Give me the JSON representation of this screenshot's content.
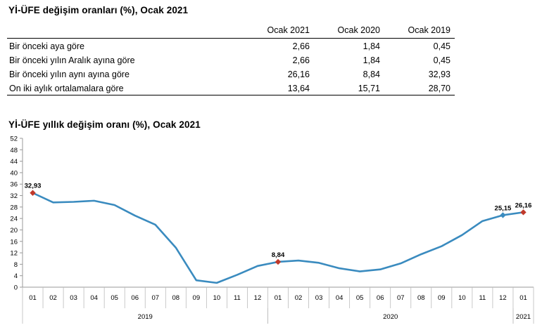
{
  "table": {
    "title": "Yİ-ÜFE değişim oranları (%), Ocak 2021",
    "columns": [
      "Ocak 2021",
      "Ocak 2020",
      "Ocak 2019"
    ],
    "rows": [
      {
        "label": "Bir önceki aya göre",
        "values": [
          "2,66",
          "1,84",
          "0,45"
        ]
      },
      {
        "label": "Bir önceki yılın Aralık ayına göre",
        "values": [
          "2,66",
          "1,84",
          "0,45"
        ]
      },
      {
        "label": "Bir önceki yılın aynı ayına göre",
        "values": [
          "26,16",
          "8,84",
          "32,93"
        ]
      },
      {
        "label": "On iki aylık ortalamalara göre",
        "values": [
          "13,64",
          "15,71",
          "28,70"
        ]
      }
    ]
  },
  "chart_data": {
    "type": "line",
    "title": "Yİ-ÜFE yıllık değişim oranı (%), Ocak 2021",
    "xlabel": "",
    "ylabel": "",
    "ylim": [
      0,
      52
    ],
    "yticks": [
      0,
      4,
      8,
      12,
      16,
      20,
      24,
      28,
      32,
      36,
      40,
      44,
      48,
      52
    ],
    "categories": [
      "01",
      "02",
      "03",
      "04",
      "05",
      "06",
      "07",
      "08",
      "09",
      "10",
      "11",
      "12",
      "01",
      "02",
      "03",
      "04",
      "05",
      "06",
      "07",
      "08",
      "09",
      "10",
      "11",
      "12",
      "01"
    ],
    "year_groups": [
      {
        "label": "2019",
        "count": 12
      },
      {
        "label": "2020",
        "count": 12
      },
      {
        "label": "2021",
        "count": 1
      }
    ],
    "series": [
      {
        "color": "#3a8bbf",
        "values": [
          32.93,
          29.6,
          29.8,
          30.2,
          28.7,
          25.0,
          21.8,
          13.8,
          2.4,
          1.5,
          4.3,
          7.4,
          8.84,
          9.3,
          8.5,
          6.6,
          5.5,
          6.2,
          8.3,
          11.5,
          14.3,
          18.2,
          23.1,
          25.15,
          26.16
        ]
      }
    ],
    "labeled_points": [
      {
        "index": 0,
        "label": "32,93",
        "color": "#c0392b"
      },
      {
        "index": 12,
        "label": "8,84",
        "color": "#c0392b"
      },
      {
        "index": 23,
        "label": "25,15",
        "color": "#3a8bbf"
      },
      {
        "index": 24,
        "label": "26,16",
        "color": "#c0392b"
      }
    ],
    "grid": false,
    "legend": "none"
  }
}
